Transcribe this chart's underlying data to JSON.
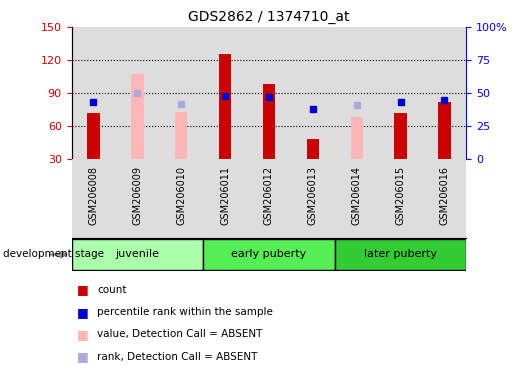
{
  "title": "GDS2862 / 1374710_at",
  "samples": [
    "GSM206008",
    "GSM206009",
    "GSM206010",
    "GSM206011",
    "GSM206012",
    "GSM206013",
    "GSM206014",
    "GSM206015",
    "GSM206016"
  ],
  "count_values": [
    72,
    null,
    null,
    125,
    98,
    48,
    null,
    72,
    82
  ],
  "count_absent_values": [
    null,
    107,
    73,
    null,
    null,
    null,
    68,
    null,
    null
  ],
  "percentile_rank": [
    43,
    null,
    null,
    48,
    47,
    38,
    null,
    43,
    45
  ],
  "percentile_rank_absent": [
    null,
    50,
    42,
    null,
    null,
    null,
    41,
    null,
    null
  ],
  "groups_info": [
    {
      "label": "juvenile",
      "indices": [
        0,
        1,
        2
      ],
      "color": "#aaffaa"
    },
    {
      "label": "early puberty",
      "indices": [
        3,
        4,
        5
      ],
      "color": "#55ee55"
    },
    {
      "label": "later puberty",
      "indices": [
        6,
        7,
        8
      ],
      "color": "#33cc33"
    }
  ],
  "ylim_left": [
    30,
    150
  ],
  "ylim_right": [
    0,
    100
  ],
  "yticks_left": [
    30,
    60,
    90,
    120,
    150
  ],
  "yticks_right": [
    0,
    25,
    50,
    75,
    100
  ],
  "ytick_labels_right": [
    "0",
    "25",
    "50",
    "75",
    "100%"
  ],
  "bar_color_count": "#cc0000",
  "bar_color_absent": "#ffb6b6",
  "dot_color_rank": "#0000cc",
  "dot_color_rank_absent": "#aaaadd",
  "bg_color_plot": "#dddddd",
  "dotted_line_y": [
    60,
    90,
    120
  ],
  "legend_items": [
    {
      "color": "#cc0000",
      "label": "count"
    },
    {
      "color": "#0000cc",
      "label": "percentile rank within the sample"
    },
    {
      "color": "#ffb6b6",
      "label": "value, Detection Call = ABSENT"
    },
    {
      "color": "#aaaadd",
      "label": "rank, Detection Call = ABSENT"
    }
  ]
}
